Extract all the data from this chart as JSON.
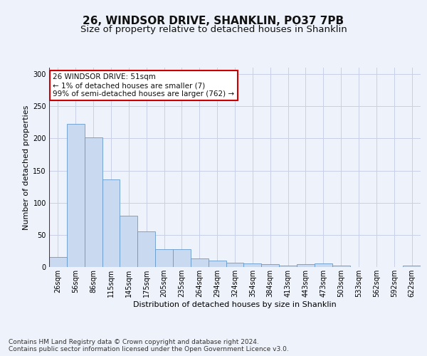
{
  "title": "26, WINDSOR DRIVE, SHANKLIN, PO37 7PB",
  "subtitle": "Size of property relative to detached houses in Shanklin",
  "xlabel": "Distribution of detached houses by size in Shanklin",
  "ylabel": "Number of detached properties",
  "bin_labels": [
    "26sqm",
    "56sqm",
    "86sqm",
    "115sqm",
    "145sqm",
    "175sqm",
    "205sqm",
    "235sqm",
    "264sqm",
    "294sqm",
    "324sqm",
    "354sqm",
    "384sqm",
    "413sqm",
    "443sqm",
    "473sqm",
    "503sqm",
    "533sqm",
    "562sqm",
    "592sqm",
    "622sqm"
  ],
  "bar_values": [
    15,
    223,
    202,
    136,
    80,
    55,
    28,
    28,
    13,
    10,
    7,
    6,
    4,
    2,
    4,
    5,
    2,
    0,
    0,
    0,
    2
  ],
  "bar_color": "#c9d9f0",
  "bar_edge_color": "#6699cc",
  "highlight_color": "#cc0000",
  "annotation_text": "26 WINDSOR DRIVE: 51sqm\n← 1% of detached houses are smaller (7)\n99% of semi-detached houses are larger (762) →",
  "annotation_box_color": "#ffffff",
  "annotation_box_edge": "#cc0000",
  "ylim": [
    0,
    310
  ],
  "yticks": [
    0,
    50,
    100,
    150,
    200,
    250,
    300
  ],
  "footer_text": "Contains HM Land Registry data © Crown copyright and database right 2024.\nContains public sector information licensed under the Open Government Licence v3.0.",
  "background_color": "#eef2fb",
  "grid_color": "#c8cfe8",
  "title_fontsize": 11,
  "subtitle_fontsize": 9.5,
  "axis_label_fontsize": 8,
  "tick_fontsize": 7,
  "annotation_fontsize": 7.5,
  "footer_fontsize": 6.5
}
